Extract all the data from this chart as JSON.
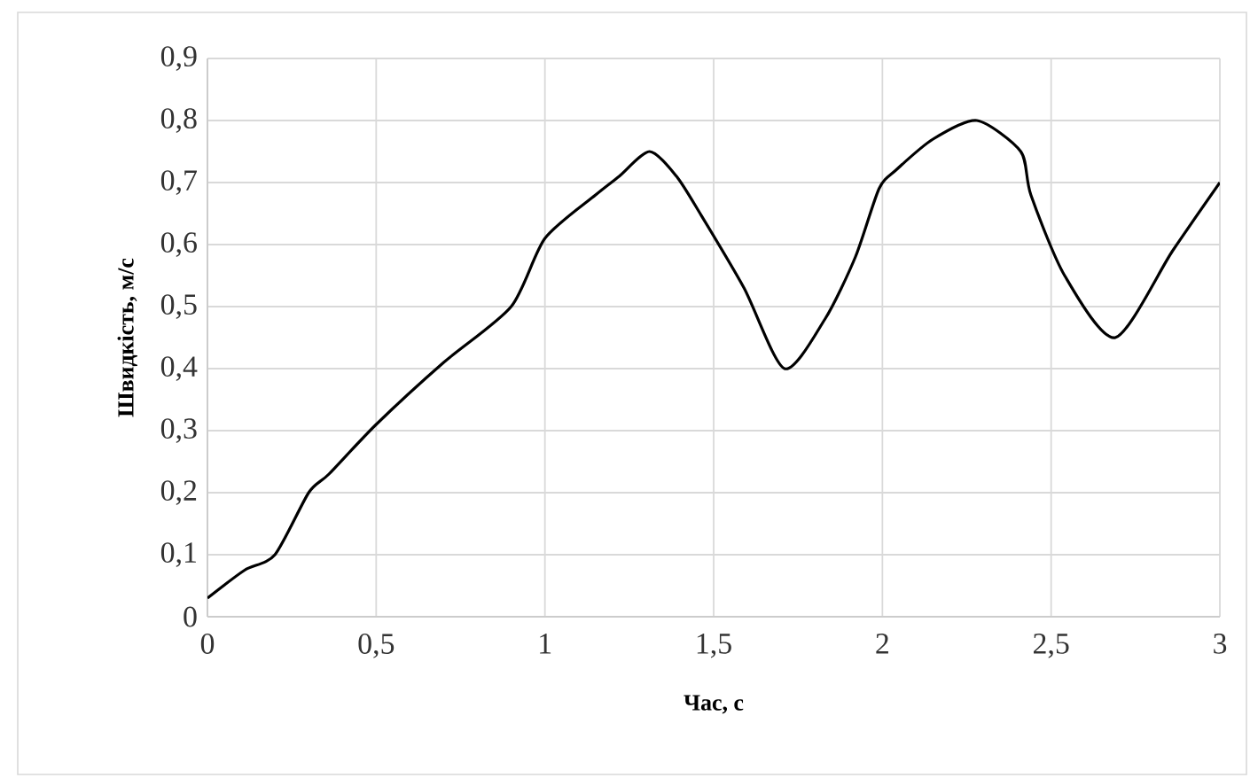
{
  "chart_data": {
    "type": "line",
    "xlabel": "Час, с",
    "ylabel": "Швидкість, м/с",
    "x": [
      0,
      0.11,
      0.2,
      0.3,
      0.36,
      0.5,
      0.7,
      0.9,
      1.0,
      1.15,
      1.22,
      1.31,
      1.39,
      1.46,
      1.59,
      1.71,
      1.83,
      1.92,
      1.99,
      2.04,
      2.15,
      2.28,
      2.41,
      2.44,
      2.54,
      2.69,
      2.86,
      3.0
    ],
    "series": [
      {
        "color": "#000000",
        "values": [
          0.03,
          0.075,
          0.1,
          0.2,
          0.23,
          0.31,
          0.41,
          0.5,
          0.61,
          0.68,
          0.71,
          0.75,
          0.71,
          0.65,
          0.53,
          0.4,
          0.48,
          0.58,
          0.69,
          0.72,
          0.77,
          0.8,
          0.75,
          0.68,
          0.55,
          0.45,
          0.59,
          0.7
        ]
      }
    ],
    "xlim": [
      0,
      3
    ],
    "ylim": [
      0,
      0.9
    ],
    "xticks": [
      0,
      {
        "value": 0.5,
        "label": "0,5"
      },
      1,
      {
        "value": 1.5,
        "label": "1,5"
      },
      2,
      {
        "value": 2.5,
        "label": "2,5"
      },
      3
    ],
    "yticks": [
      0,
      {
        "value": 0.1,
        "label": "0,1"
      },
      {
        "value": 0.2,
        "label": "0,2"
      },
      {
        "value": 0.3,
        "label": "0,3"
      },
      {
        "value": 0.4,
        "label": "0,4"
      },
      {
        "value": 0.5,
        "label": "0,5"
      },
      {
        "value": 0.6,
        "label": "0,6"
      },
      {
        "value": 0.7,
        "label": "0,7"
      },
      {
        "value": 0.8,
        "label": "0,8"
      },
      {
        "value": 0.9,
        "label": "0,9"
      }
    ],
    "grid": true,
    "marker": "none",
    "line_style": "solid"
  }
}
